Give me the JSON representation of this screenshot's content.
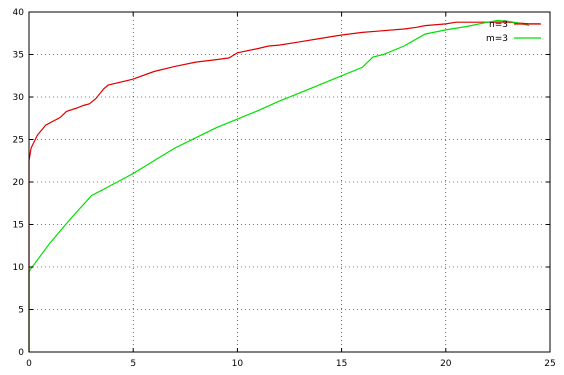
{
  "chart_data": {
    "type": "line",
    "xlim": [
      0,
      25
    ],
    "ylim": [
      0,
      40
    ],
    "xticks": [
      0,
      5,
      10,
      15,
      20,
      25
    ],
    "yticks": [
      0,
      5,
      10,
      15,
      20,
      25,
      30,
      35,
      40
    ],
    "x_tick_labels": [
      "0",
      "5",
      "10",
      "15",
      "20",
      "25"
    ],
    "y_tick_labels": [
      "0",
      "5",
      "10",
      "15",
      "20",
      "25",
      "30",
      "35",
      "40"
    ],
    "grid": true,
    "legend_position": "top-right",
    "series": [
      {
        "name": "n=3",
        "color": "#e00000",
        "x": [
          0,
          0,
          0.1,
          0.4,
          0.8,
          1.5,
          1.8,
          2.3,
          2.6,
          2.9,
          3.2,
          3.6,
          3.8,
          5.0,
          6.0,
          7.0,
          8.0,
          9.0,
          9.6,
          10.0,
          11.0,
          11.5,
          12.0,
          13.0,
          14.0,
          15.0,
          16.0,
          17.0,
          18.0,
          18.6,
          19.0,
          20.0,
          20.5,
          21.0,
          22.0,
          23.0,
          24.0,
          24.5
        ],
        "y": [
          0,
          22.5,
          24.0,
          25.5,
          26.7,
          27.6,
          28.3,
          28.7,
          29.0,
          29.2,
          29.8,
          31.0,
          31.4,
          32.1,
          33.0,
          33.6,
          34.1,
          34.4,
          34.6,
          35.2,
          35.7,
          36.0,
          36.1,
          36.5,
          36.9,
          37.3,
          37.6,
          37.8,
          38.0,
          38.2,
          38.4,
          38.6,
          38.8,
          38.8,
          38.8,
          38.8,
          38.6,
          38.6
        ]
      },
      {
        "name": "m=3",
        "color": "#00e000",
        "x": [
          0,
          0,
          0.3,
          1.0,
          2.0,
          3.0,
          4.0,
          5.0,
          6.0,
          7.0,
          8.0,
          9.0,
          10.0,
          11.0,
          12.0,
          13.0,
          14.0,
          15.0,
          16.0,
          16.5,
          17.0,
          18.0,
          19.0,
          20.0,
          21.0,
          22.0,
          22.5,
          23.0,
          23.5,
          24.0
        ],
        "y": [
          0,
          9.5,
          10.5,
          12.8,
          15.7,
          18.4,
          19.7,
          21.0,
          22.5,
          24.0,
          25.2,
          26.4,
          27.4,
          28.4,
          29.5,
          30.5,
          31.5,
          32.5,
          33.5,
          34.7,
          35.0,
          36.0,
          37.4,
          37.9,
          38.3,
          38.8,
          39.0,
          38.9,
          38.7,
          38.4
        ]
      }
    ]
  }
}
